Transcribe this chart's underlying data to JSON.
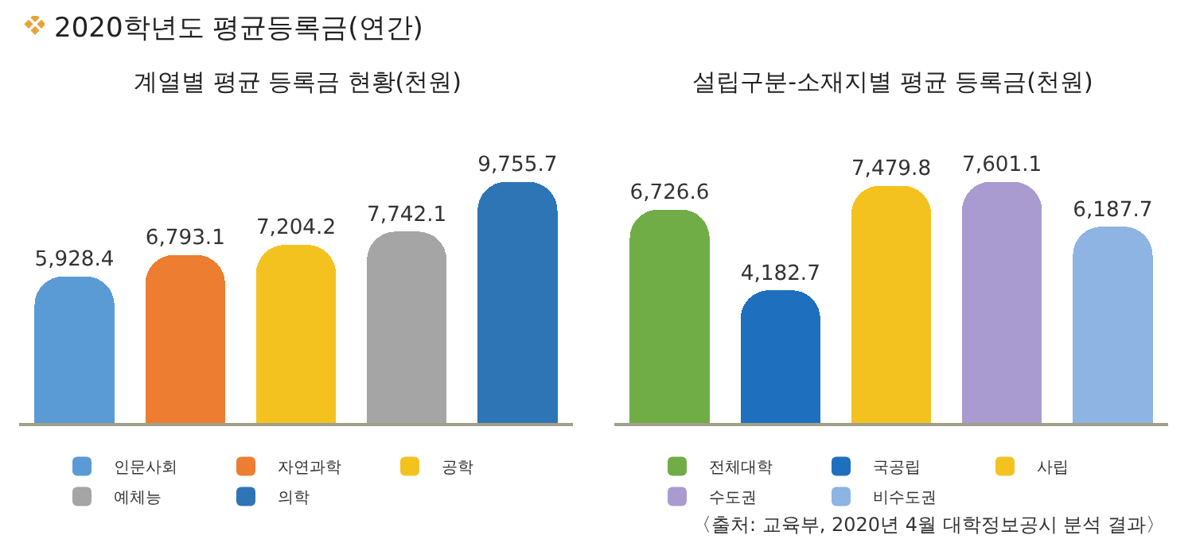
{
  "chart_data": [
    {
      "type": "other",
      "title": "2020학년도 평균등록금(연간)"
    },
    {
      "type": "bar",
      "title": "계열별 평균 등록금 현황(천원)",
      "categories": [
        null,
        null,
        null,
        null,
        null
      ],
      "stacked": true,
      "legend": "bottom",
      "tick_labels": false,
      "series": [
        {
          "name": "인문사회",
          "color": "#5b9bd5",
          "values": [
            5928.4,
            null,
            null,
            null,
            null
          ],
          "value_labels": [
            "5,928.4",
            null,
            null,
            null,
            null
          ]
        },
        {
          "name": "자연과학",
          "color": "#ed7d31",
          "values": [
            null,
            6793.1,
            null,
            null,
            null
          ],
          "value_labels": [
            null,
            "6,793.1",
            null,
            null,
            null
          ]
        },
        {
          "name": "공학",
          "color": "#f4c21f",
          "values": [
            null,
            null,
            7204.2,
            null,
            null
          ],
          "value_labels": [
            null,
            null,
            "7,204.2",
            null,
            null
          ]
        },
        {
          "name": "예체능",
          "color": "#a5a5a5",
          "values": [
            null,
            null,
            null,
            7742.1,
            null
          ],
          "value_labels": [
            null,
            null,
            null,
            "7,742.1",
            null
          ]
        },
        {
          "name": "의학",
          "color": "#2e75b6",
          "values": [
            null,
            null,
            null,
            null,
            9755.7
          ],
          "value_labels": [
            null,
            null,
            null,
            null,
            "9,755.7"
          ]
        }
      ]
    },
    {
      "type": "bar",
      "title": "설립구분-소재지별 평균 등록금(천원)",
      "categories": [
        null,
        null,
        null,
        null,
        null
      ],
      "stacked": true,
      "legend": "bottom",
      "tick_labels": false,
      "series": [
        {
          "name": "전체대학",
          "color": "#70ad47",
          "values": [
            6726.6,
            null,
            null,
            null,
            null
          ],
          "value_labels": [
            "6,726.6",
            null,
            null,
            null,
            null
          ]
        },
        {
          "name": "국공립",
          "color": "#1f6fbf",
          "values": [
            null,
            4182.7,
            null,
            null,
            null
          ],
          "value_labels": [
            null,
            "4,182.7",
            null,
            null,
            null
          ]
        },
        {
          "name": "사립",
          "color": "#f4c21f",
          "values": [
            null,
            null,
            7479.8,
            null,
            null
          ],
          "value_labels": [
            null,
            null,
            "7,479.8",
            null,
            null
          ]
        },
        {
          "name": "수도권",
          "color": "#a99bd0",
          "values": [
            null,
            null,
            null,
            7601.1,
            null
          ],
          "value_labels": [
            null,
            null,
            null,
            "7,601.1",
            null
          ]
        },
        {
          "name": "비수도권",
          "color": "#8db4e2",
          "values": [
            null,
            null,
            null,
            null,
            6187.7
          ],
          "value_labels": [
            null,
            null,
            null,
            null,
            "6,187.7"
          ]
        }
      ],
      "annotations": [
        "〈출처: 교육부, 2020년 4월 대학정보공시 분석 결과〉"
      ]
    }
  ]
}
